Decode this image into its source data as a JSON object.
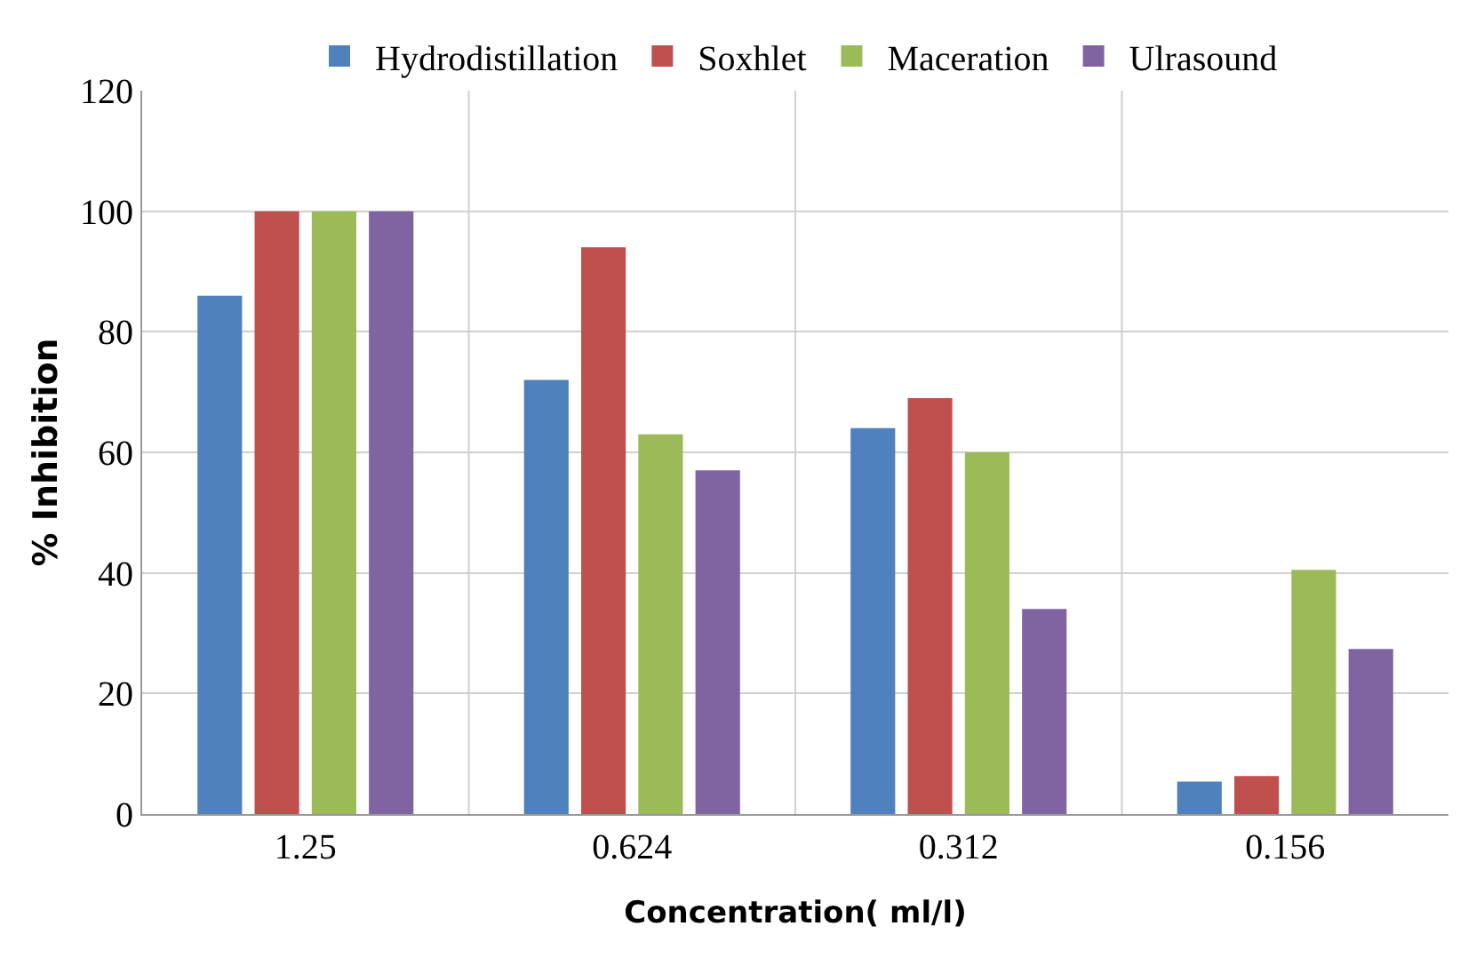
{
  "chart_data": {
    "type": "bar",
    "xlabel": "Concentration( ml/l)",
    "ylabel": "% Inhibition",
    "categories": [
      "1.25",
      "0.624",
      "0.312",
      "0.156"
    ],
    "series": [
      {
        "name": "Hydrodistillation",
        "color": "#4f81bd",
        "values": [
          86,
          72,
          64,
          5.4
        ]
      },
      {
        "name": "Soxhlet",
        "color": "#c0504d",
        "values": [
          100,
          94,
          69,
          6.3
        ]
      },
      {
        "name": "Maceration",
        "color": "#9bbb59",
        "values": [
          100,
          63,
          60,
          40.5
        ]
      },
      {
        "name": "Ulrasound",
        "color": "#8064a2",
        "values": [
          100,
          57,
          34,
          27.4
        ]
      }
    ],
    "ylim": [
      0,
      120
    ],
    "yticks": [
      0,
      20,
      40,
      60,
      80,
      100,
      120
    ],
    "grid": true,
    "legend": "top"
  }
}
